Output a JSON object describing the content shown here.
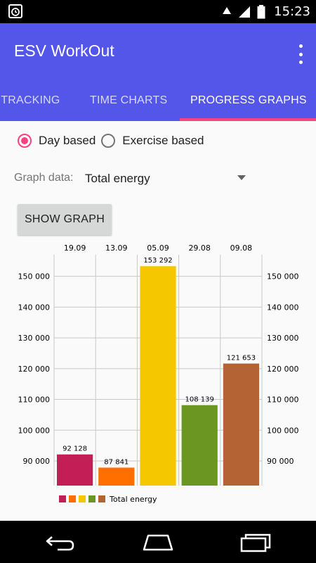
{
  "status_bar": {
    "time": "15:23",
    "icons": [
      "alarm-icon",
      "wifi-icon",
      "signal-icon",
      "battery-icon"
    ]
  },
  "app": {
    "title": "ESV WorkOut",
    "accent": "#5356e9",
    "indicator": "#ff4081"
  },
  "tabs": [
    {
      "label": "S TRACKING",
      "selected": false
    },
    {
      "label": "TIME CHARTS",
      "selected": false
    },
    {
      "label": "PROGRESS GRAPHS",
      "selected": true
    }
  ],
  "mode": {
    "options": [
      {
        "label": "Day based",
        "checked": true
      },
      {
        "label": "Exercise based",
        "checked": false
      }
    ]
  },
  "graph_data": {
    "label": "Graph data:",
    "value": "Total energy"
  },
  "show_graph_button": "SHOW GRAPH",
  "chart_data": {
    "type": "bar",
    "categories": [
      "19.09",
      "13.09",
      "05.09",
      "29.08",
      "09.08"
    ],
    "series": [
      {
        "name": "Total energy",
        "values": [
          92128,
          87841,
          153292,
          108139,
          121653
        ],
        "value_labels": [
          "92 128",
          "87 841",
          "153 292",
          "108 139",
          "121 653"
        ],
        "colors": [
          "#c41e56",
          "#ff6f00",
          "#f5c700",
          "#6b9621",
          "#b46335"
        ]
      }
    ],
    "ylim": [
      82000,
      157000
    ],
    "y_ticks": [
      90000,
      100000,
      110000,
      120000,
      130000,
      140000,
      150000
    ],
    "y_tick_labels": [
      "90 000",
      "100 000",
      "110 000",
      "120 000",
      "130 000",
      "140 000",
      "150 000"
    ],
    "grid": true,
    "axes": "left-and-right",
    "category_axis": "top",
    "legend": "bottom-left"
  },
  "nav_bar": {
    "buttons": [
      "back-icon",
      "home-icon",
      "recents-icon"
    ]
  }
}
